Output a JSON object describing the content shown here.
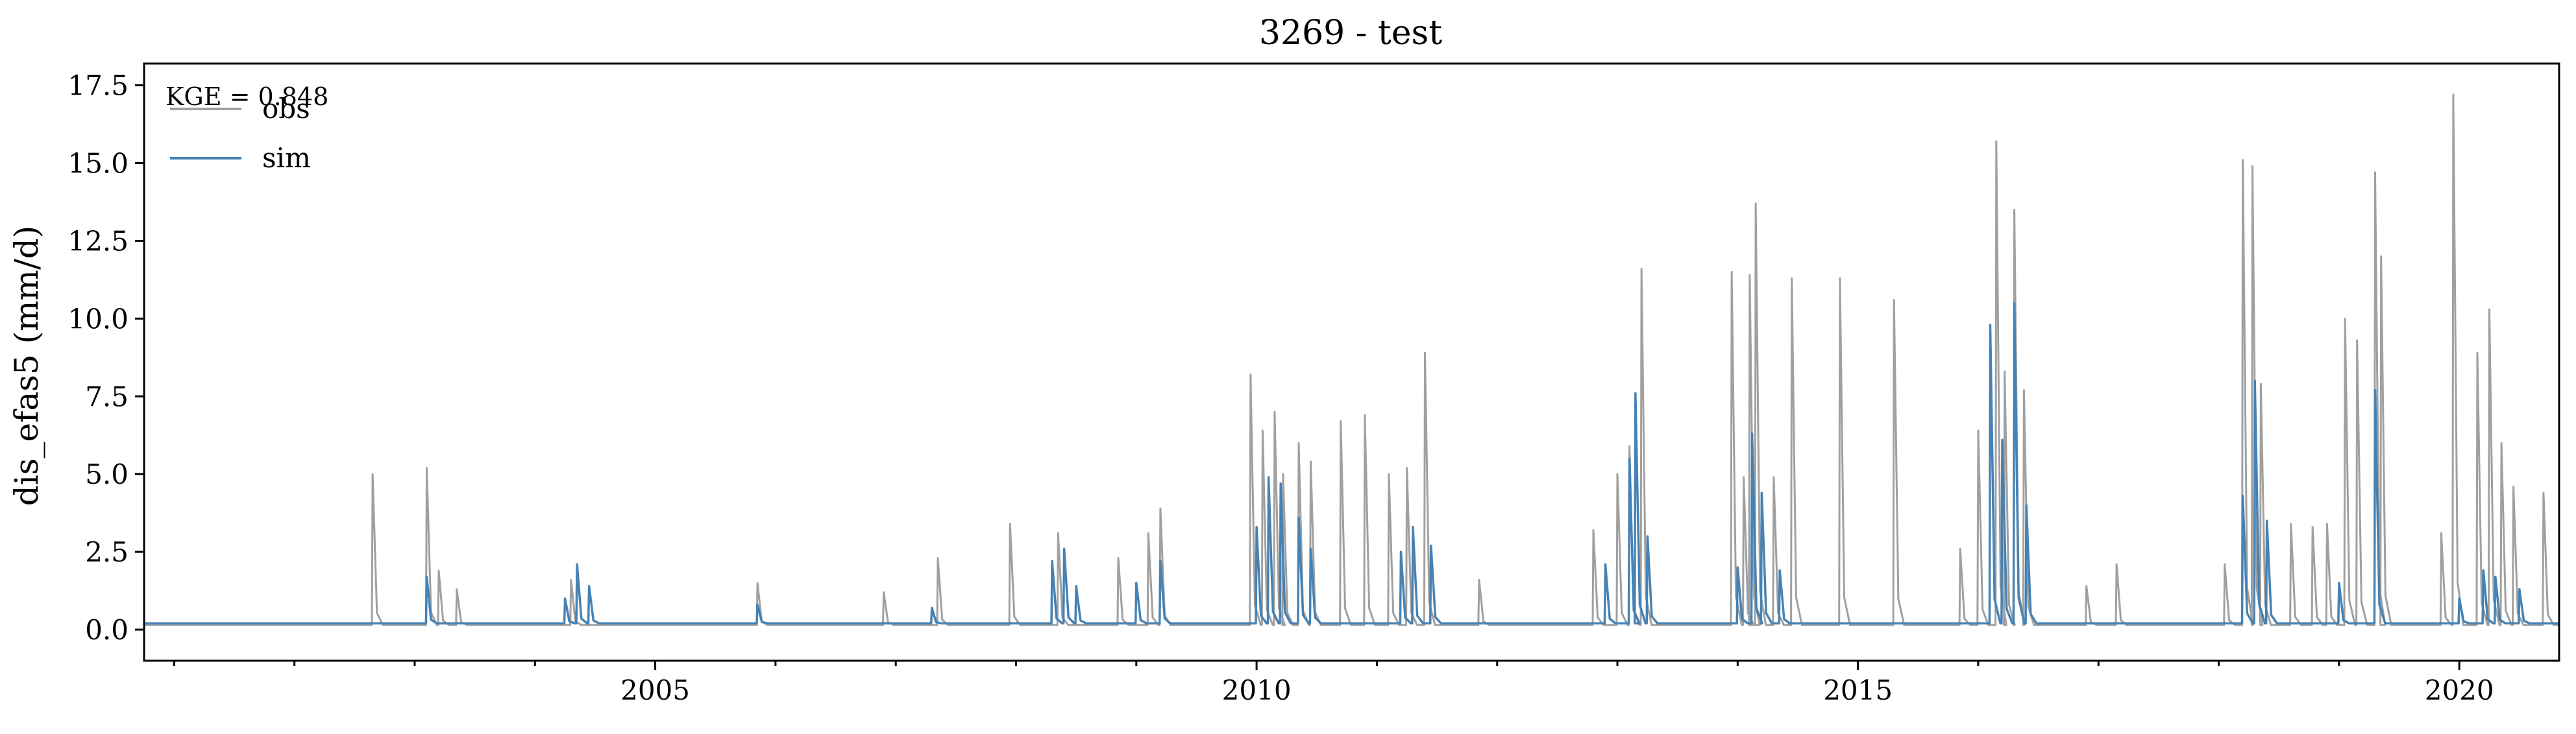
{
  "chart_data": {
    "type": "line",
    "title": "3269 - test",
    "xlabel": "",
    "ylabel": "dis_efas5 (mm/d)",
    "annotation": "KGE = 0.848",
    "xlim": [
      2000.75,
      2020.83
    ],
    "ylim": [
      -1.0,
      18.2
    ],
    "x_ticks": [
      2005,
      2010,
      2015,
      2020
    ],
    "x_tick_labels": [
      "2005",
      "2010",
      "2015",
      "2020"
    ],
    "y_ticks": [
      0.0,
      2.5,
      5.0,
      7.5,
      10.0,
      12.5,
      15.0,
      17.5
    ],
    "y_tick_labels": [
      "0.0",
      "2.5",
      "5.0",
      "7.5",
      "10.0",
      "12.5",
      "15.0",
      "17.5"
    ],
    "legend_position": "top-left",
    "grid": false,
    "series": [
      {
        "name": "obs",
        "color": "#a0a0a0",
        "baseline": 0.15,
        "peaks": [
          [
            2002.65,
            5.0
          ],
          [
            2003.1,
            5.2
          ],
          [
            2003.2,
            1.9
          ],
          [
            2003.35,
            1.3
          ],
          [
            2004.3,
            1.6
          ],
          [
            2005.85,
            1.5
          ],
          [
            2006.9,
            1.2
          ],
          [
            2007.35,
            2.3
          ],
          [
            2007.95,
            3.4
          ],
          [
            2008.35,
            3.1
          ],
          [
            2008.85,
            2.3
          ],
          [
            2009.1,
            3.1
          ],
          [
            2009.2,
            3.9
          ],
          [
            2009.95,
            8.2
          ],
          [
            2010.05,
            6.4
          ],
          [
            2010.15,
            7.0
          ],
          [
            2010.22,
            5.0
          ],
          [
            2010.35,
            6.0
          ],
          [
            2010.45,
            5.4
          ],
          [
            2010.7,
            6.7
          ],
          [
            2010.9,
            6.9
          ],
          [
            2011.1,
            5.0
          ],
          [
            2011.25,
            5.2
          ],
          [
            2011.4,
            8.9
          ],
          [
            2011.85,
            1.6
          ],
          [
            2012.8,
            3.2
          ],
          [
            2013.0,
            5.0
          ],
          [
            2013.1,
            5.9
          ],
          [
            2013.2,
            11.6
          ],
          [
            2013.95,
            11.5
          ],
          [
            2014.05,
            4.9
          ],
          [
            2014.1,
            11.4
          ],
          [
            2014.15,
            13.7
          ],
          [
            2014.3,
            4.9
          ],
          [
            2014.45,
            11.3
          ],
          [
            2014.85,
            11.3
          ],
          [
            2015.3,
            10.6
          ],
          [
            2015.85,
            2.6
          ],
          [
            2016.0,
            6.4
          ],
          [
            2016.15,
            15.7
          ],
          [
            2016.22,
            8.3
          ],
          [
            2016.3,
            13.5
          ],
          [
            2016.38,
            7.7
          ],
          [
            2016.9,
            1.4
          ],
          [
            2017.15,
            2.1
          ],
          [
            2018.05,
            2.1
          ],
          [
            2018.2,
            15.1
          ],
          [
            2018.28,
            14.9
          ],
          [
            2018.35,
            7.9
          ],
          [
            2018.6,
            3.4
          ],
          [
            2018.78,
            3.3
          ],
          [
            2018.9,
            3.4
          ],
          [
            2019.05,
            10.0
          ],
          [
            2019.15,
            9.3
          ],
          [
            2019.3,
            14.7
          ],
          [
            2019.35,
            12.0
          ],
          [
            2019.85,
            3.1
          ],
          [
            2019.95,
            17.2
          ],
          [
            2020.15,
            8.9
          ],
          [
            2020.25,
            10.3
          ],
          [
            2020.35,
            6.0
          ],
          [
            2020.45,
            4.6
          ],
          [
            2020.7,
            4.4
          ]
        ]
      },
      {
        "name": "sim",
        "color": "#4682b4",
        "baseline": 0.2,
        "peaks": [
          [
            2003.1,
            1.7
          ],
          [
            2004.25,
            1.0
          ],
          [
            2004.35,
            2.1
          ],
          [
            2004.45,
            1.4
          ],
          [
            2005.85,
            0.8
          ],
          [
            2007.3,
            0.7
          ],
          [
            2008.3,
            2.2
          ],
          [
            2008.4,
            2.6
          ],
          [
            2008.5,
            1.4
          ],
          [
            2009.0,
            1.5
          ],
          [
            2009.2,
            2.2
          ],
          [
            2010.0,
            3.3
          ],
          [
            2010.1,
            4.9
          ],
          [
            2010.2,
            4.7
          ],
          [
            2010.35,
            3.6
          ],
          [
            2010.45,
            2.6
          ],
          [
            2011.2,
            2.5
          ],
          [
            2011.3,
            3.3
          ],
          [
            2011.45,
            2.7
          ],
          [
            2012.9,
            2.1
          ],
          [
            2013.1,
            5.5
          ],
          [
            2013.15,
            7.6
          ],
          [
            2013.25,
            3.0
          ],
          [
            2014.0,
            2.0
          ],
          [
            2014.12,
            6.3
          ],
          [
            2014.2,
            4.4
          ],
          [
            2014.35,
            1.9
          ],
          [
            2016.1,
            9.8
          ],
          [
            2016.2,
            6.1
          ],
          [
            2016.3,
            10.5
          ],
          [
            2016.4,
            4.0
          ],
          [
            2018.2,
            4.3
          ],
          [
            2018.3,
            8.0
          ],
          [
            2018.4,
            3.5
          ],
          [
            2019.0,
            1.5
          ],
          [
            2019.3,
            7.7
          ],
          [
            2020.0,
            1.0
          ],
          [
            2020.2,
            1.9
          ],
          [
            2020.3,
            1.7
          ],
          [
            2020.5,
            1.3
          ]
        ]
      }
    ]
  }
}
